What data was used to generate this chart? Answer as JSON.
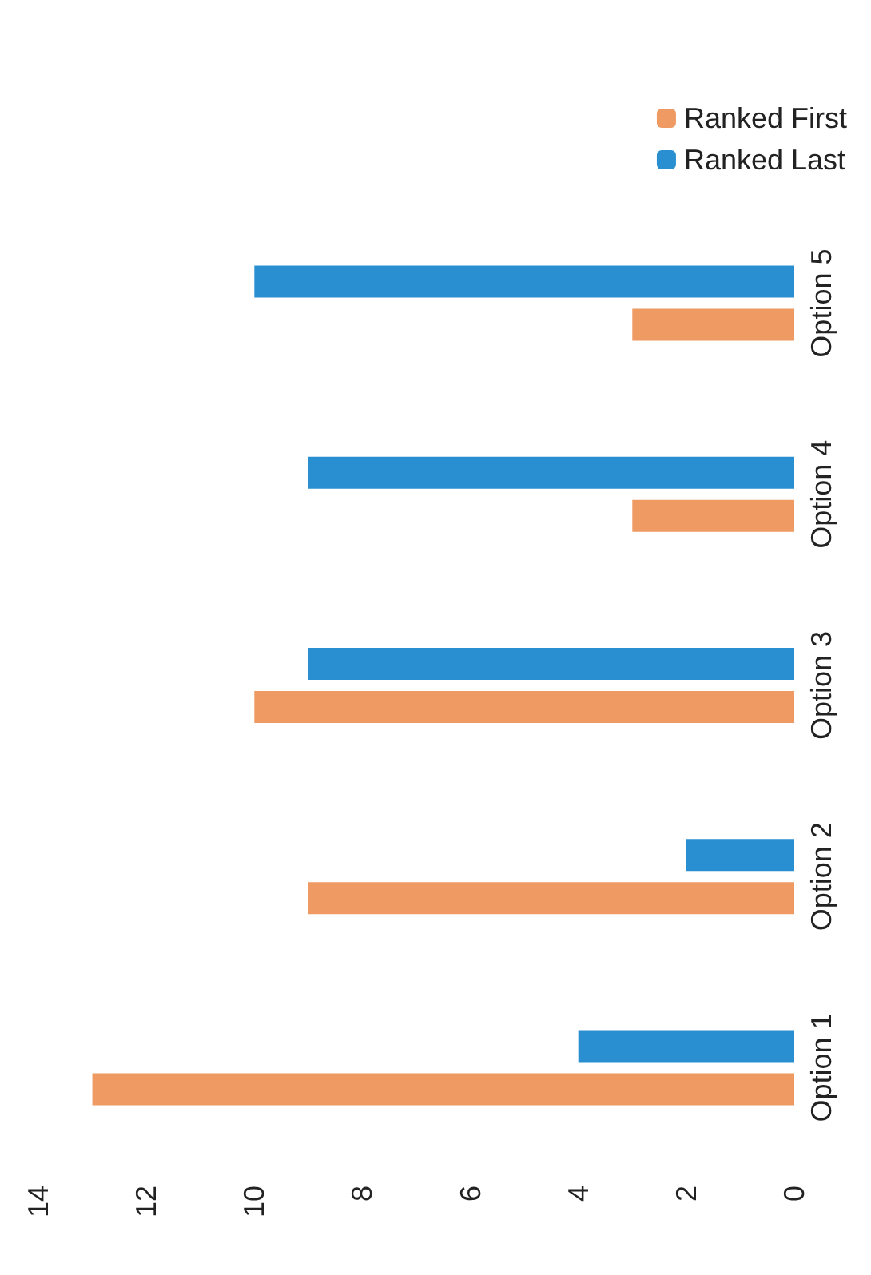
{
  "chart_data": {
    "type": "bar",
    "orientation": "horizontal",
    "categories": [
      "Option 5",
      "Option 4",
      "Option 3",
      "Option 2",
      "Option 1"
    ],
    "series": [
      {
        "name": "Ranked First",
        "color": "#ee9a62",
        "values": [
          3,
          3,
          10,
          9,
          13
        ]
      },
      {
        "name": "Ranked Last",
        "color": "#2a8fd1",
        "values": [
          10,
          9,
          9,
          2,
          4
        ]
      }
    ],
    "xlim": [
      14,
      0
    ],
    "xticks": [
      14,
      12,
      10,
      8,
      6,
      4,
      2,
      0
    ],
    "grid": false,
    "legend": "top right"
  }
}
